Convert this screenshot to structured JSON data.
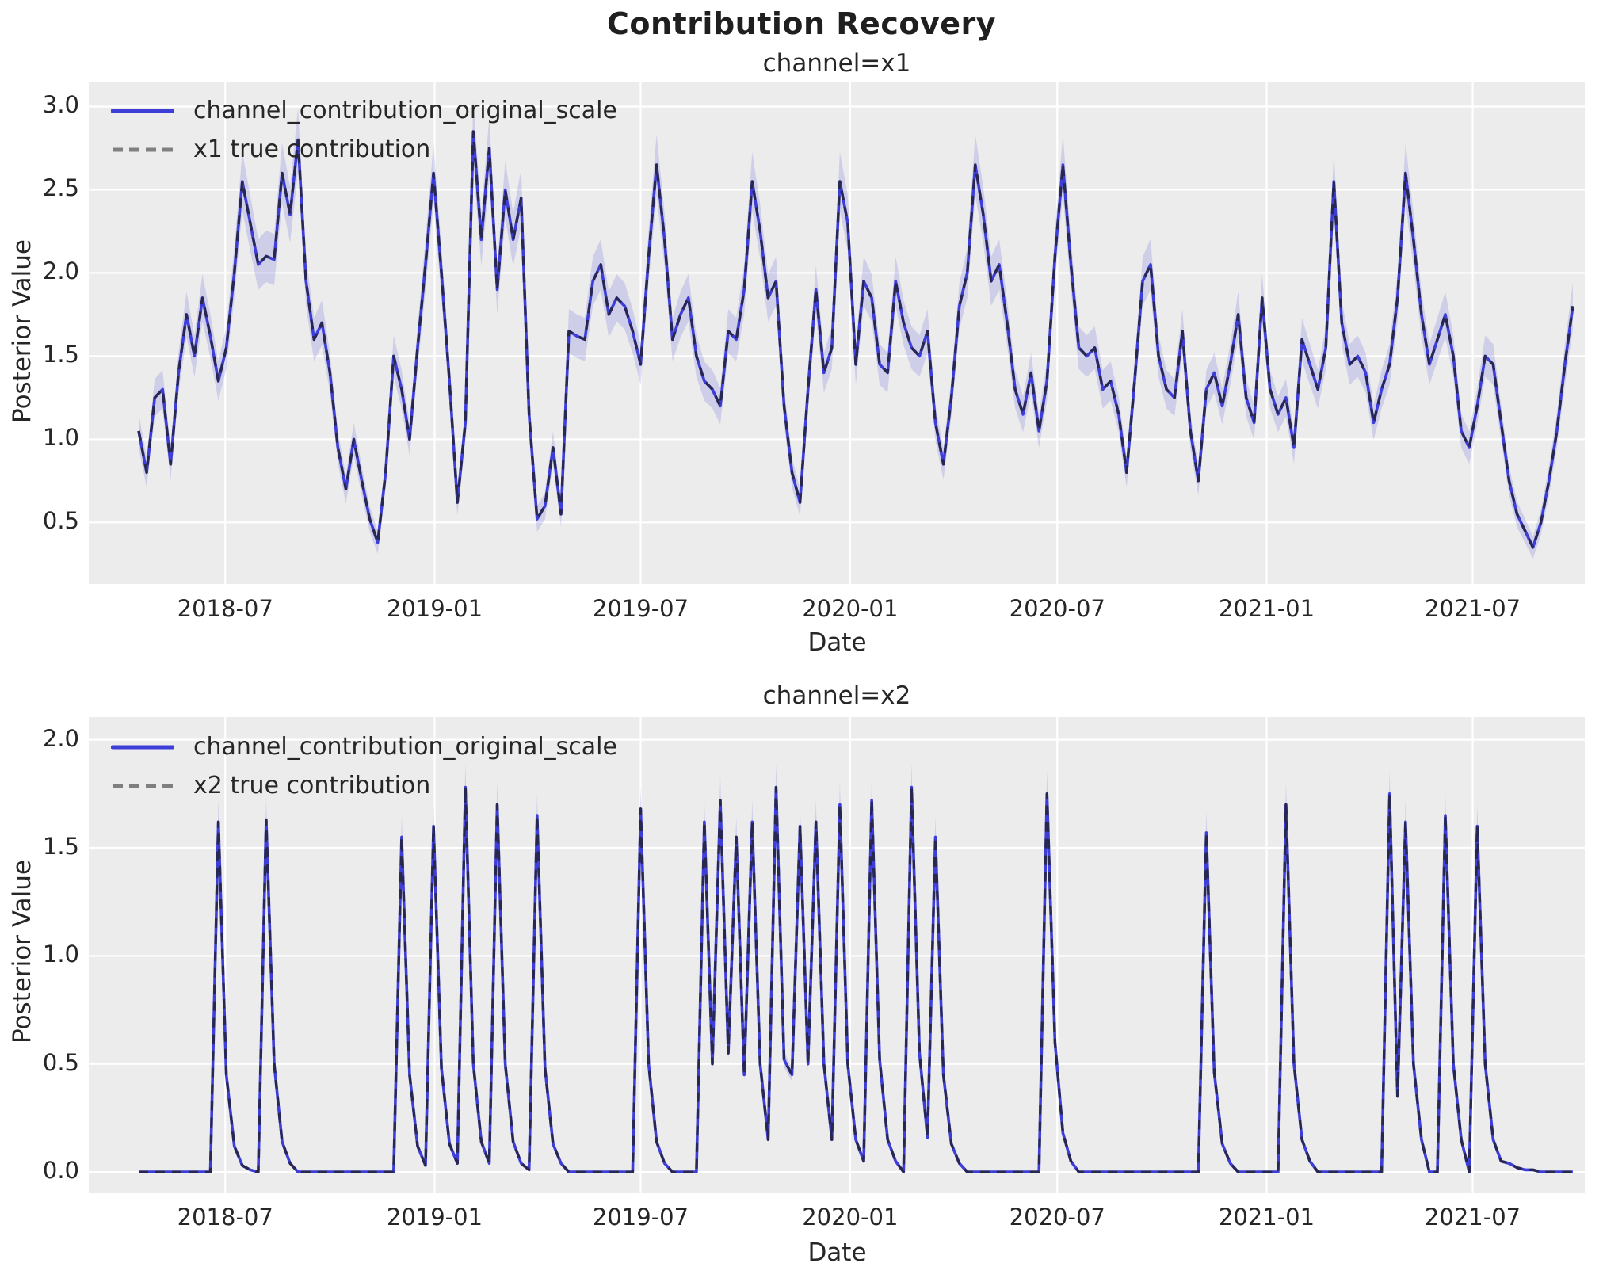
{
  "figure": {
    "title": "Contribution Recovery"
  },
  "colors": {
    "posterior_line": "#3d3dd8",
    "true_line_plot": "rgba(35,35,55,0.85)",
    "true_line_legend": "#7f7f7f",
    "band_fill": "#3d3dd8",
    "band_opacity": 0.17,
    "axes_background": "#ececec",
    "grid": "#ffffff",
    "text": "#262626"
  },
  "chart_data": [
    {
      "type": "line",
      "title": "channel=x1",
      "xlabel": "Date",
      "ylabel": "Posterior Value",
      "ylim": [
        0.13,
        3.15
      ],
      "y_ticks": [
        0.5,
        1.0,
        1.5,
        2.0,
        2.5,
        3.0
      ],
      "x_ticks": [
        {
          "label": "2018-07",
          "week": 10.86
        },
        {
          "label": "2019-01",
          "week": 37.14
        },
        {
          "label": "2019-07",
          "week": 63.0
        },
        {
          "label": "2020-01",
          "week": 89.29
        },
        {
          "label": "2020-07",
          "week": 115.29
        },
        {
          "label": "2021-01",
          "week": 141.57
        },
        {
          "label": "2021-07",
          "week": 167.43
        }
      ],
      "grid": true,
      "legend_position": "upper-left",
      "legend": [
        {
          "label": "channel_contribution_original_scale",
          "style": "solid-blue"
        },
        {
          "label": "x1 true contribution",
          "style": "dashed-gray"
        }
      ],
      "band": {
        "rel": 0.05,
        "abs": 0.05
      },
      "series": [
        {
          "name": "channel_contribution_original_scale",
          "values": [
            1.05,
            0.8,
            1.25,
            1.3,
            0.85,
            1.4,
            1.75,
            1.5,
            1.85,
            1.62,
            1.35,
            1.55,
            2.0,
            2.55,
            2.3,
            2.05,
            2.1,
            2.08,
            2.6,
            2.35,
            2.8,
            1.95,
            1.6,
            1.7,
            1.4,
            0.95,
            0.7,
            1.0,
            0.75,
            0.52,
            0.38,
            0.8,
            1.5,
            1.3,
            1.0,
            1.55,
            2.05,
            2.6,
            2.0,
            1.35,
            0.62,
            1.1,
            2.85,
            2.2,
            2.75,
            1.9,
            2.5,
            2.2,
            2.45,
            1.15,
            0.52,
            0.6,
            0.95,
            0.55,
            1.65,
            1.62,
            1.6,
            1.95,
            2.05,
            1.75,
            1.85,
            1.8,
            1.65,
            1.45,
            2.1,
            2.65,
            2.2,
            1.6,
            1.75,
            1.85,
            1.5,
            1.35,
            1.3,
            1.2,
            1.65,
            1.6,
            1.9,
            2.55,
            2.25,
            1.85,
            1.95,
            1.2,
            0.8,
            0.62,
            1.3,
            1.9,
            1.4,
            1.55,
            2.55,
            2.3,
            1.45,
            1.95,
            1.85,
            1.45,
            1.4,
            1.95,
            1.7,
            1.55,
            1.5,
            1.65,
            1.1,
            0.85,
            1.25,
            1.8,
            2.0,
            2.65,
            2.35,
            1.95,
            2.05,
            1.7,
            1.3,
            1.15,
            1.4,
            1.05,
            1.35,
            2.1,
            2.65,
            2.05,
            1.55,
            1.5,
            1.55,
            1.3,
            1.35,
            1.15,
            0.8,
            1.35,
            1.95,
            2.05,
            1.5,
            1.3,
            1.25,
            1.65,
            1.05,
            0.75,
            1.3,
            1.4,
            1.2,
            1.45,
            1.75,
            1.25,
            1.1,
            1.85,
            1.3,
            1.15,
            1.25,
            0.95,
            1.6,
            1.45,
            1.3,
            1.55,
            2.55,
            1.7,
            1.45,
            1.5,
            1.4,
            1.1,
            1.3,
            1.45,
            1.85,
            2.6,
            2.2,
            1.75,
            1.45,
            1.6,
            1.75,
            1.5,
            1.05,
            0.95,
            1.2,
            1.5,
            1.45,
            1.1,
            0.75,
            0.55,
            0.45,
            0.35,
            0.5,
            0.75,
            1.05,
            1.45,
            1.8
          ]
        },
        {
          "name": "x1 true contribution",
          "overlaps_posterior": true,
          "values_same_as": 0
        }
      ]
    },
    {
      "type": "line",
      "title": "channel=x2",
      "xlabel": "Date",
      "ylabel": "Posterior Value",
      "ylim": [
        -0.095,
        2.105
      ],
      "y_ticks": [
        0.0,
        0.5,
        1.0,
        1.5,
        2.0
      ],
      "x_ticks": [
        {
          "label": "2018-07",
          "week": 10.86
        },
        {
          "label": "2019-01",
          "week": 37.14
        },
        {
          "label": "2019-07",
          "week": 63.0
        },
        {
          "label": "2020-01",
          "week": 89.29
        },
        {
          "label": "2020-07",
          "week": 115.29
        },
        {
          "label": "2021-01",
          "week": 141.57
        },
        {
          "label": "2021-07",
          "week": 167.43
        }
      ],
      "grid": true,
      "legend_position": "upper-left",
      "legend": [
        {
          "label": "channel_contribution_original_scale",
          "style": "solid-blue"
        },
        {
          "label": "x2 true contribution",
          "style": "dashed-gray"
        }
      ],
      "band": {
        "rel": 0.06,
        "abs": 0.005
      },
      "series": [
        {
          "name": "channel_contribution_original_scale",
          "values": [
            0,
            0,
            0,
            0,
            0,
            0,
            0,
            0,
            0,
            0,
            1.62,
            0.45,
            0.12,
            0.03,
            0.01,
            0,
            1.63,
            0.5,
            0.14,
            0.04,
            0,
            0,
            0,
            0,
            0,
            0,
            0,
            0,
            0,
            0,
            0,
            0,
            0,
            1.55,
            0.45,
            0.12,
            0.03,
            1.6,
            0.48,
            0.13,
            0.04,
            1.78,
            0.5,
            0.14,
            0.04,
            1.7,
            0.5,
            0.14,
            0.04,
            0.01,
            1.65,
            0.48,
            0.13,
            0.04,
            0,
            0,
            0,
            0,
            0,
            0,
            0,
            0,
            0,
            1.68,
            0.5,
            0.14,
            0.04,
            0,
            0,
            0,
            0,
            1.62,
            0.5,
            1.72,
            0.55,
            1.55,
            0.45,
            1.62,
            0.5,
            0.15,
            1.78,
            0.52,
            0.45,
            1.6,
            0.5,
            1.62,
            0.5,
            0.15,
            1.7,
            0.5,
            0.15,
            0.05,
            1.72,
            0.52,
            0.15,
            0.05,
            0,
            1.78,
            0.55,
            0.16,
            1.55,
            0.45,
            0.13,
            0.04,
            0,
            0,
            0,
            0,
            0,
            0,
            0,
            0,
            0,
            0,
            1.75,
            0.6,
            0.18,
            0.05,
            0,
            0,
            0,
            0,
            0,
            0,
            0,
            0,
            0,
            0,
            0,
            0,
            0,
            0,
            0,
            0,
            1.57,
            0.46,
            0.13,
            0.04,
            0,
            0,
            0,
            0,
            0,
            0,
            1.7,
            0.5,
            0.15,
            0.05,
            0,
            0,
            0,
            0,
            0,
            0,
            0,
            0,
            0,
            1.75,
            0.35,
            1.62,
            0.5,
            0.15,
            0,
            0,
            1.65,
            0.5,
            0.15,
            0,
            1.6,
            0.5,
            0.15,
            0.05,
            0.04,
            0.02,
            0.01,
            0.01,
            0,
            0,
            0,
            0,
            0
          ]
        },
        {
          "name": "x2 true contribution",
          "overlaps_posterior": true,
          "values_same_as": 0
        }
      ]
    }
  ]
}
